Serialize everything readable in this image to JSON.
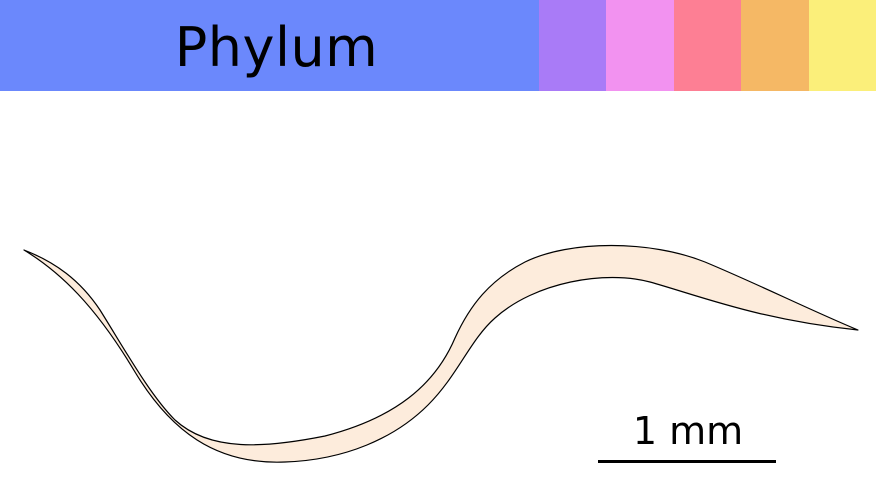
{
  "rank_bar": {
    "label": "Phylum",
    "colors": [
      "#6b88fc",
      "#a97bf7",
      "#f292f0",
      "#fd7f94",
      "#f5b865",
      "#fbef7a"
    ]
  },
  "organism": {
    "icon": "nematode-worm-icon",
    "fill_color": "#fdecdc",
    "outline_color": "#000000"
  },
  "scale_bar": {
    "label": "1 mm"
  }
}
